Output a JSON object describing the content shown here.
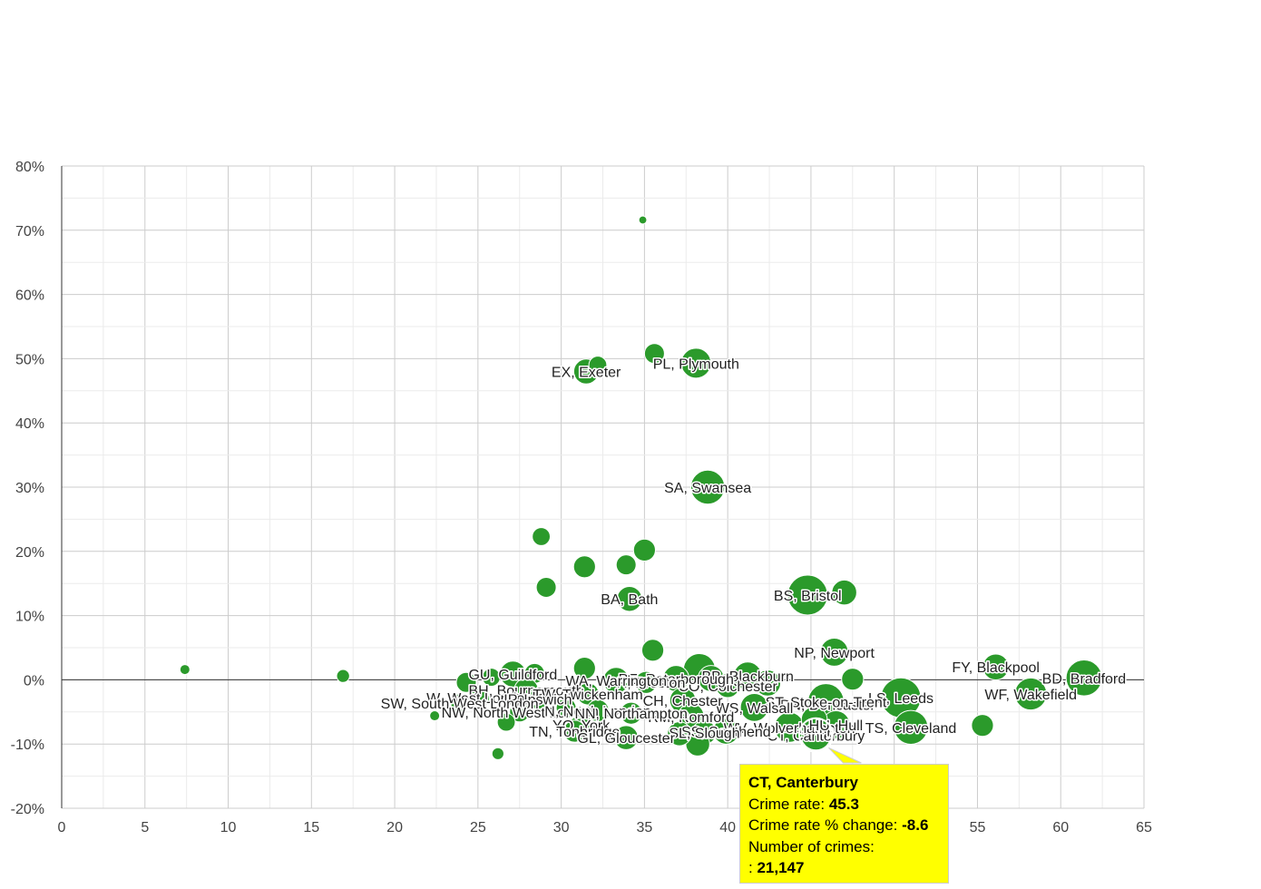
{
  "chart_data": {
    "type": "scatter",
    "title": "",
    "xlabel": "",
    "ylabel": "",
    "xlim": [
      0,
      65
    ],
    "ylim": [
      -20,
      80
    ],
    "x_ticks": [
      "0",
      "5",
      "10",
      "15",
      "20",
      "25",
      "30",
      "35",
      "40",
      "45",
      "50",
      "55",
      "60",
      "65"
    ],
    "y_ticks": [
      "-20%",
      "-10%",
      "0%",
      "10%",
      "20%",
      "30%",
      "40%",
      "50%",
      "60%",
      "70%",
      "80%"
    ],
    "bubble_color": "#2b9a2b",
    "points": [
      {
        "code": "",
        "label": "",
        "x": 7.4,
        "y": 1.6,
        "size": 1
      },
      {
        "code": "",
        "label": "",
        "x": 16.9,
        "y": 0.6,
        "size": 1.3
      },
      {
        "code": "",
        "label": "",
        "x": 22.4,
        "y": -5.6,
        "size": 1
      },
      {
        "code": "",
        "label": "",
        "x": 26.2,
        "y": -11.5,
        "size": 1.2
      },
      {
        "code": "",
        "label": "",
        "x": 34.9,
        "y": 71.6,
        "size": 0.8
      },
      {
        "code": "EX",
        "label": "EX, Exeter",
        "x": 31.5,
        "y": 48.0,
        "size": 2.5
      },
      {
        "code": "",
        "label": "",
        "x": 32.2,
        "y": 49.0,
        "size": 1.8
      },
      {
        "code": "",
        "label": "",
        "x": 35.6,
        "y": 50.8,
        "size": 2
      },
      {
        "code": "PL",
        "label": "PL, Plymouth",
        "x": 38.1,
        "y": 49.3,
        "size": 3
      },
      {
        "code": "SA",
        "label": "SA, Swansea",
        "x": 38.8,
        "y": 30.0,
        "size": 3.4
      },
      {
        "code": "",
        "label": "",
        "x": 28.8,
        "y": 22.3,
        "size": 1.8
      },
      {
        "code": "",
        "label": "",
        "x": 35.0,
        "y": 20.2,
        "size": 2.2
      },
      {
        "code": "",
        "label": "",
        "x": 31.4,
        "y": 17.6,
        "size": 2.2
      },
      {
        "code": "",
        "label": "",
        "x": 33.9,
        "y": 17.9,
        "size": 2
      },
      {
        "code": "",
        "label": "",
        "x": 29.1,
        "y": 14.4,
        "size": 2
      },
      {
        "code": "BA",
        "label": "BA, Bath",
        "x": 34.1,
        "y": 12.6,
        "size": 2.5
      },
      {
        "code": "BS",
        "label": "BS, Bristol",
        "x": 44.8,
        "y": 13.2,
        "size": 4
      },
      {
        "code": "",
        "label": "",
        "x": 47.0,
        "y": 13.6,
        "size": 2.5
      },
      {
        "code": "",
        "label": "",
        "x": 35.5,
        "y": 4.6,
        "size": 2.2
      },
      {
        "code": "NP",
        "label": "NP, Newport",
        "x": 46.4,
        "y": 4.3,
        "size": 2.8
      },
      {
        "code": "",
        "label": "",
        "x": 47.5,
        "y": 0.1,
        "size": 2.2
      },
      {
        "code": "FY",
        "label": "FY, Blackpool",
        "x": 56.1,
        "y": 2.0,
        "size": 2.6
      },
      {
        "code": "BD",
        "label": "BD, Bradford",
        "x": 61.4,
        "y": 0.3,
        "size": 3.6
      },
      {
        "code": "WF",
        "label": "WF, Wakefield",
        "x": 58.2,
        "y": -2.2,
        "size": 3.2
      },
      {
        "code": "LS",
        "label": "LS, Leeds",
        "x": 50.4,
        "y": -2.8,
        "size": 4
      },
      {
        "code": "TS",
        "label": "TS, Cleveland",
        "x": 51.0,
        "y": -7.4,
        "size": 3.4
      },
      {
        "code": "",
        "label": "",
        "x": 55.3,
        "y": -7.1,
        "size": 2.2
      },
      {
        "code": "DN",
        "label": "DN, Doncaster",
        "x": 46.0,
        "y": -3.8,
        "size": 3.2
      },
      {
        "code": "ST",
        "label": "ST, Stoke-on-Trent",
        "x": 45.9,
        "y": -3.4,
        "size": 3.6
      },
      {
        "code": "CT",
        "label": "CT, Canterbury",
        "x": 45.3,
        "y": -8.6,
        "size": 3
      },
      {
        "code": "WV",
        "label": "WV, Wolverhampton",
        "x": 43.7,
        "y": -7.4,
        "size": 3
      },
      {
        "code": "HU",
        "label": "HU, Hull",
        "x": 46.5,
        "y": -7.0,
        "size": 2.8
      },
      {
        "code": "",
        "label": "",
        "x": 45.2,
        "y": -6.2,
        "size": 2.6
      },
      {
        "code": "SS",
        "label": "SS, Southend",
        "x": 39.9,
        "y": -8.0,
        "size": 2.6
      },
      {
        "code": "WS",
        "label": "WS, Walsall",
        "x": 41.6,
        "y": -4.3,
        "size": 2.8
      },
      {
        "code": "BB",
        "label": "BB, Blackburn",
        "x": 41.2,
        "y": 0.6,
        "size": 2.8
      },
      {
        "code": "",
        "label": "",
        "x": 38.3,
        "y": 1.6,
        "size": 3.2
      },
      {
        "code": "",
        "label": "",
        "x": 39.0,
        "y": 0.2,
        "size": 2.6
      },
      {
        "code": "",
        "label": "",
        "x": 42.4,
        "y": -0.5,
        "size": 2.6
      },
      {
        "code": "CO",
        "label": "CO, Colchester",
        "x": 40.0,
        "y": -0.9,
        "size": 2.4
      },
      {
        "code": "PE",
        "label": "PE, Peterborough",
        "x": 36.9,
        "y": 0.2,
        "size": 2.6
      },
      {
        "code": "PR",
        "label": "PR, Preston",
        "x": 35.1,
        "y": -0.4,
        "size": 2.2
      },
      {
        "code": "CH",
        "label": "CH, Chester",
        "x": 37.3,
        "y": -3.2,
        "size": 2.6
      },
      {
        "code": "RM",
        "label": "RM, Romford",
        "x": 37.8,
        "y": -5.7,
        "size": 2.6
      },
      {
        "code": "SL",
        "label": "SL, Slough",
        "x": 38.6,
        "y": -8.2,
        "size": 2.4
      },
      {
        "code": "",
        "label": "",
        "x": 38.2,
        "y": -10.0,
        "size": 2.4
      },
      {
        "code": "",
        "label": "",
        "x": 37.1,
        "y": -8.4,
        "size": 2.4
      },
      {
        "code": "WA",
        "label": "WA, Warrington",
        "x": 33.3,
        "y": -0.1,
        "size": 2.6
      },
      {
        "code": "GU",
        "label": "GU, Guildford",
        "x": 27.1,
        "y": 0.9,
        "size": 2.6
      },
      {
        "code": "",
        "label": "",
        "x": 28.4,
        "y": 1.0,
        "size": 2
      },
      {
        "code": "",
        "label": "",
        "x": 25.8,
        "y": 0.4,
        "size": 1.8
      },
      {
        "code": "",
        "label": "",
        "x": 24.3,
        "y": -0.4,
        "size": 2
      },
      {
        "code": "BH",
        "label": "BH, Bournemouth",
        "x": 27.9,
        "y": -1.6,
        "size": 2.4
      },
      {
        "code": "W",
        "label": "W, West London",
        "x": 25.1,
        "y": -2.8,
        "size": 2
      },
      {
        "code": "",
        "label": "",
        "x": 31.4,
        "y": 1.8,
        "size": 2.2
      },
      {
        "code": "TW",
        "label": "TW, Twickenham",
        "x": 31.6,
        "y": -2.2,
        "size": 2.2
      },
      {
        "code": "IP",
        "label": "IP, Ipswich",
        "x": 28.6,
        "y": -3.0,
        "size": 2
      },
      {
        "code": "SW",
        "label": "SW, South West London",
        "x": 23.9,
        "y": -3.6,
        "size": 1.8
      },
      {
        "code": "NW",
        "label": "NW, North West London",
        "x": 27.5,
        "y": -5.0,
        "size": 2
      },
      {
        "code": "",
        "label": "",
        "x": 26.7,
        "y": -6.6,
        "size": 1.8
      },
      {
        "code": "N",
        "label": "N, North London",
        "x": 32.2,
        "y": -4.8,
        "size": 2.2
      },
      {
        "code": "YO",
        "label": "YO, York",
        "x": 31.2,
        "y": -7.0,
        "size": 2.2
      },
      {
        "code": "TN",
        "label": "TN, Tonbridge",
        "x": 30.8,
        "y": -8.0,
        "size": 2.2
      },
      {
        "code": "GL",
        "label": "GL, Gloucester",
        "x": 33.9,
        "y": -9.0,
        "size": 2.4
      },
      {
        "code": "NN",
        "label": "NN, Northampton",
        "x": 34.2,
        "y": -5.2,
        "size": 2.2
      },
      {
        "code": "",
        "label": "",
        "x": 30.3,
        "y": -4.4,
        "size": 2
      }
    ],
    "tooltip": {
      "title": "CT, Canterbury",
      "rate_label": "Crime rate:",
      "rate_value": "45.3",
      "change_label": "Crime rate % change:",
      "change_value": "-8.6",
      "count_label": "Number of crimes:",
      "count_prefix": ":",
      "count_value": "21,147"
    }
  }
}
